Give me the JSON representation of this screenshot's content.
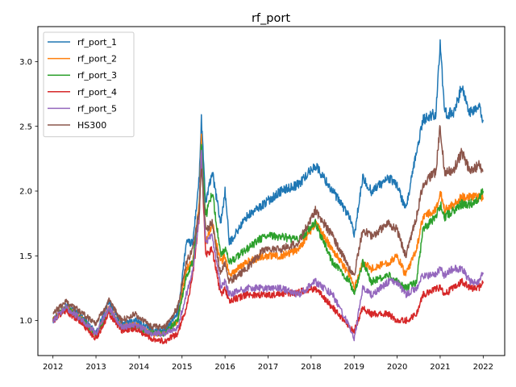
{
  "chart_data": {
    "type": "line",
    "title": "rf_port",
    "xlabel": "",
    "ylabel": "",
    "xlim": [
      2011.65,
      2022.5
    ],
    "ylim": [
      0.73,
      3.27
    ],
    "xticks": [
      2012,
      2013,
      2014,
      2015,
      2016,
      2017,
      2018,
      2019,
      2020,
      2021,
      2022
    ],
    "xtick_labels": [
      "2012",
      "2013",
      "2014",
      "2015",
      "2016",
      "2017",
      "2018",
      "2019",
      "2020",
      "2021",
      "2022"
    ],
    "yticks": [
      1.0,
      1.5,
      2.0,
      2.5,
      3.0
    ],
    "ytick_labels": [
      "1.0",
      "1.5",
      "2.0",
      "2.5",
      "3.0"
    ],
    "grid": false,
    "legend_position": "top-left",
    "series": [
      {
        "name": "rf_port_1",
        "color": "#1f77b4",
        "x": [
          2012.0,
          2012.3,
          2012.7,
          2013.0,
          2013.3,
          2013.6,
          2013.9,
          2014.3,
          2014.6,
          2014.9,
          2015.1,
          2015.25,
          2015.4,
          2015.45,
          2015.55,
          2015.7,
          2015.9,
          2016.0,
          2016.1,
          2016.5,
          2016.9,
          2017.3,
          2017.7,
          2018.1,
          2018.5,
          2018.9,
          2019.0,
          2019.2,
          2019.4,
          2019.8,
          2020.0,
          2020.2,
          2020.45,
          2020.6,
          2020.9,
          2021.0,
          2021.1,
          2021.3,
          2021.5,
          2021.7,
          2021.9,
          2022.0
        ],
        "values": [
          1.0,
          1.12,
          1.02,
          0.9,
          1.15,
          0.97,
          1.0,
          0.93,
          0.92,
          1.05,
          1.6,
          1.6,
          2.1,
          2.55,
          1.9,
          2.15,
          1.75,
          2.0,
          1.6,
          1.8,
          1.9,
          2.0,
          2.05,
          2.2,
          2.0,
          1.8,
          1.65,
          2.1,
          2.0,
          2.1,
          2.05,
          1.85,
          2.3,
          2.55,
          2.6,
          3.15,
          2.6,
          2.6,
          2.8,
          2.6,
          2.65,
          2.55
        ]
      },
      {
        "name": "rf_port_2",
        "color": "#ff7f0e",
        "x": [
          2012.0,
          2012.3,
          2012.7,
          2013.0,
          2013.3,
          2013.6,
          2013.9,
          2014.3,
          2014.6,
          2014.9,
          2015.1,
          2015.25,
          2015.4,
          2015.45,
          2015.55,
          2015.7,
          2015.9,
          2016.0,
          2016.1,
          2016.5,
          2016.9,
          2017.3,
          2017.7,
          2018.1,
          2018.5,
          2018.9,
          2019.0,
          2019.2,
          2019.4,
          2019.8,
          2020.0,
          2020.2,
          2020.45,
          2020.6,
          2020.9,
          2021.0,
          2021.1,
          2021.3,
          2021.5,
          2021.7,
          2021.9,
          2022.0
        ],
        "values": [
          1.0,
          1.1,
          1.0,
          0.88,
          1.1,
          0.95,
          0.97,
          0.9,
          0.9,
          1.0,
          1.4,
          1.45,
          1.9,
          2.4,
          1.6,
          1.75,
          1.45,
          1.5,
          1.35,
          1.45,
          1.5,
          1.5,
          1.55,
          1.75,
          1.55,
          1.35,
          1.25,
          1.45,
          1.4,
          1.45,
          1.5,
          1.35,
          1.55,
          1.8,
          1.85,
          2.0,
          1.85,
          1.9,
          1.95,
          1.95,
          1.95,
          1.95
        ]
      },
      {
        "name": "rf_port_3",
        "color": "#2ca02c",
        "x": [
          2012.0,
          2012.3,
          2012.7,
          2013.0,
          2013.3,
          2013.6,
          2013.9,
          2014.3,
          2014.6,
          2014.9,
          2015.1,
          2015.25,
          2015.4,
          2015.45,
          2015.55,
          2015.7,
          2015.9,
          2016.0,
          2016.1,
          2016.5,
          2016.9,
          2017.3,
          2017.7,
          2018.1,
          2018.5,
          2018.9,
          2019.0,
          2019.2,
          2019.4,
          2019.8,
          2020.0,
          2020.2,
          2020.45,
          2020.6,
          2020.9,
          2021.0,
          2021.1,
          2021.3,
          2021.5,
          2021.7,
          2021.9,
          2022.0
        ],
        "values": [
          1.0,
          1.1,
          1.0,
          0.88,
          1.08,
          0.94,
          0.95,
          0.9,
          0.9,
          1.0,
          1.35,
          1.45,
          1.85,
          2.4,
          1.8,
          2.0,
          1.5,
          1.55,
          1.45,
          1.55,
          1.65,
          1.65,
          1.62,
          1.75,
          1.45,
          1.3,
          1.2,
          1.45,
          1.3,
          1.35,
          1.3,
          1.25,
          1.3,
          1.7,
          1.8,
          1.9,
          1.8,
          1.85,
          1.9,
          1.9,
          1.95,
          2.0
        ]
      },
      {
        "name": "rf_port_4",
        "color": "#d62728",
        "x": [
          2012.0,
          2012.3,
          2012.7,
          2013.0,
          2013.3,
          2013.6,
          2013.9,
          2014.3,
          2014.6,
          2014.9,
          2015.1,
          2015.25,
          2015.4,
          2015.45,
          2015.55,
          2015.7,
          2015.9,
          2016.0,
          2016.1,
          2016.5,
          2016.9,
          2017.3,
          2017.7,
          2018.1,
          2018.5,
          2018.9,
          2019.0,
          2019.2,
          2019.4,
          2019.8,
          2020.0,
          2020.2,
          2020.45,
          2020.6,
          2020.9,
          2021.0,
          2021.1,
          2021.3,
          2021.5,
          2021.7,
          2021.9,
          2022.0
        ],
        "values": [
          1.0,
          1.08,
          0.97,
          0.86,
          1.05,
          0.92,
          0.94,
          0.86,
          0.84,
          0.9,
          1.1,
          1.35,
          1.8,
          2.3,
          1.5,
          1.55,
          1.2,
          1.25,
          1.15,
          1.2,
          1.2,
          1.2,
          1.22,
          1.25,
          1.1,
          0.95,
          0.92,
          1.1,
          1.05,
          1.05,
          1.0,
          1.0,
          1.05,
          1.2,
          1.25,
          1.25,
          1.2,
          1.25,
          1.3,
          1.25,
          1.25,
          1.3
        ]
      },
      {
        "name": "rf_port_5",
        "color": "#9467bd",
        "x": [
          2012.0,
          2012.3,
          2012.7,
          2013.0,
          2013.3,
          2013.6,
          2013.9,
          2014.3,
          2014.6,
          2014.9,
          2015.1,
          2015.25,
          2015.4,
          2015.45,
          2015.55,
          2015.7,
          2015.9,
          2016.0,
          2016.1,
          2016.5,
          2016.9,
          2017.3,
          2017.7,
          2018.1,
          2018.5,
          2018.9,
          2019.0,
          2019.2,
          2019.4,
          2019.8,
          2020.0,
          2020.2,
          2020.45,
          2020.6,
          2020.9,
          2021.0,
          2021.1,
          2021.3,
          2021.5,
          2021.7,
          2021.9,
          2022.0
        ],
        "values": [
          1.0,
          1.1,
          1.0,
          0.9,
          1.1,
          0.95,
          0.97,
          0.9,
          0.9,
          0.95,
          1.2,
          1.4,
          1.8,
          2.35,
          1.6,
          1.65,
          1.25,
          1.3,
          1.2,
          1.25,
          1.25,
          1.25,
          1.2,
          1.3,
          1.2,
          0.95,
          0.85,
          1.25,
          1.2,
          1.3,
          1.3,
          1.2,
          1.25,
          1.35,
          1.35,
          1.4,
          1.35,
          1.4,
          1.4,
          1.3,
          1.3,
          1.37
        ]
      },
      {
        "name": "HS300",
        "color": "#8c564b",
        "x": [
          2012.0,
          2012.3,
          2012.7,
          2013.0,
          2013.3,
          2013.6,
          2013.9,
          2014.3,
          2014.6,
          2014.9,
          2015.1,
          2015.25,
          2015.4,
          2015.45,
          2015.55,
          2015.7,
          2015.9,
          2016.0,
          2016.1,
          2016.5,
          2016.9,
          2017.3,
          2017.7,
          2018.1,
          2018.5,
          2018.9,
          2019.0,
          2019.2,
          2019.4,
          2019.8,
          2020.0,
          2020.2,
          2020.45,
          2020.6,
          2020.9,
          2021.0,
          2021.1,
          2021.3,
          2021.5,
          2021.7,
          2021.9,
          2022.0
        ],
        "values": [
          1.05,
          1.15,
          1.05,
          0.98,
          1.15,
          1.0,
          1.05,
          0.95,
          0.95,
          1.1,
          1.45,
          1.55,
          1.85,
          2.2,
          1.7,
          1.75,
          1.35,
          1.45,
          1.3,
          1.4,
          1.55,
          1.55,
          1.6,
          1.85,
          1.65,
          1.4,
          1.35,
          1.7,
          1.65,
          1.75,
          1.7,
          1.5,
          1.8,
          2.05,
          2.15,
          2.5,
          2.15,
          2.15,
          2.3,
          2.15,
          2.2,
          2.15
        ]
      }
    ]
  }
}
